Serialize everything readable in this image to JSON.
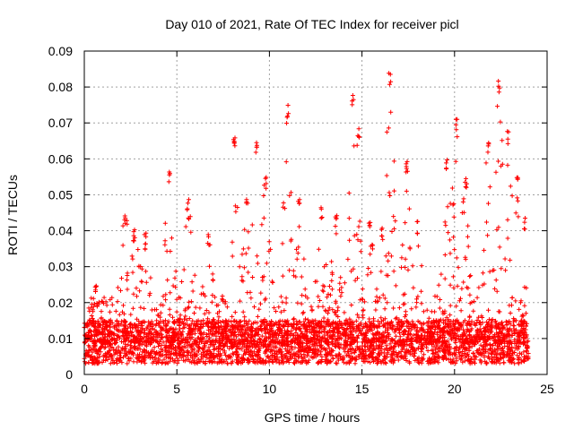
{
  "chart_data": {
    "type": "scatter",
    "title": "Day 010 of 2021, Rate Of TEC Index for receiver picl",
    "xlabel": "GPS time / hours",
    "ylabel": "ROTI / TECUs",
    "xlim": [
      0,
      25
    ],
    "ylim": [
      0,
      0.09
    ],
    "grid": true,
    "marker": "plus",
    "xticks": [
      0,
      5,
      10,
      15,
      20,
      25
    ],
    "xtick_labels": [
      "0",
      "5",
      "10",
      "15",
      "20",
      "25"
    ],
    "yticks": [
      0,
      0.01,
      0.02,
      0.03,
      0.04,
      0.05,
      0.06,
      0.07,
      0.08,
      0.09
    ],
    "ytick_labels": [
      "0",
      "0.01",
      "0.02",
      "0.03",
      "0.04",
      "0.05",
      "0.06",
      "0.07",
      "0.08",
      "0.09"
    ],
    "series": [
      {
        "name": "ROTI",
        "color": "#ff0000",
        "data_extent_hours": [
          0,
          24
        ],
        "typical_range": [
          0.003,
          0.015
        ],
        "peaks": [
          [
            0.6,
            0.025
          ],
          [
            2.2,
            0.045
          ],
          [
            2.7,
            0.041
          ],
          [
            3.3,
            0.04
          ],
          [
            4.6,
            0.057
          ],
          [
            5.6,
            0.049
          ],
          [
            6.7,
            0.04
          ],
          [
            8.1,
            0.068
          ],
          [
            8.8,
            0.05
          ],
          [
            9.3,
            0.065
          ],
          [
            9.8,
            0.055
          ],
          [
            11.0,
            0.075
          ],
          [
            11.6,
            0.05
          ],
          [
            12.8,
            0.047
          ],
          [
            13.6,
            0.045
          ],
          [
            14.5,
            0.078
          ],
          [
            14.8,
            0.069
          ],
          [
            15.4,
            0.043
          ],
          [
            16.1,
            0.041
          ],
          [
            16.5,
            0.084
          ],
          [
            17.4,
            0.06
          ],
          [
            18.0,
            0.043
          ],
          [
            19.6,
            0.06
          ],
          [
            20.1,
            0.072
          ],
          [
            20.6,
            0.055
          ],
          [
            21.8,
            0.065
          ],
          [
            22.4,
            0.082
          ],
          [
            22.9,
            0.068
          ],
          [
            23.4,
            0.057
          ],
          [
            23.8,
            0.044
          ]
        ]
      }
    ]
  }
}
